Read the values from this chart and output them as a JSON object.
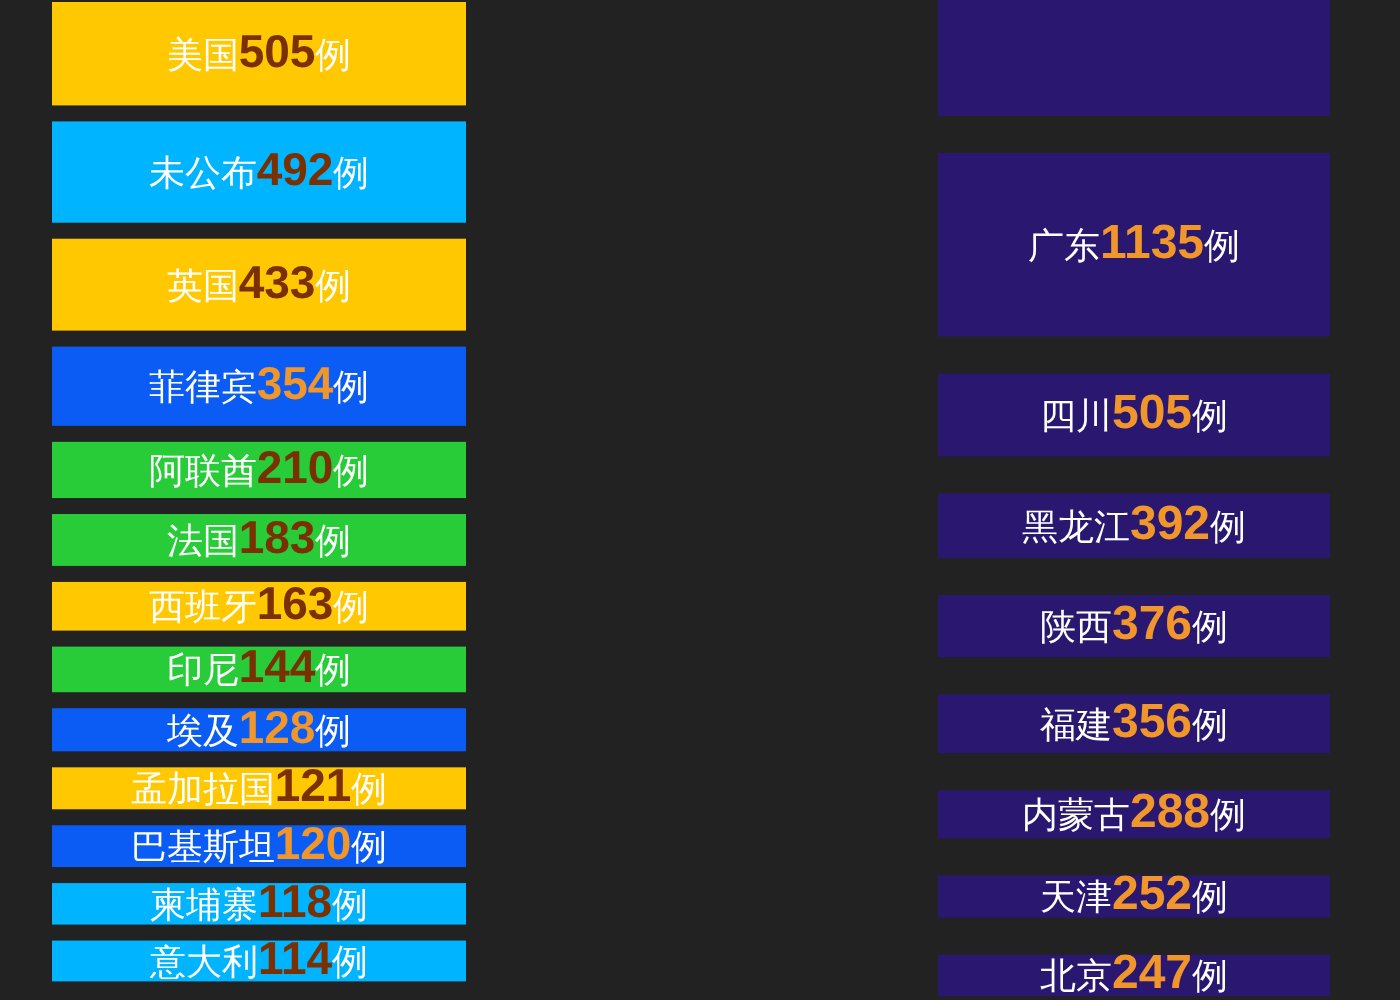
{
  "chart_data": [
    {
      "type": "other",
      "categories": [
        "美国",
        "未公布",
        "英国",
        "菲律宾",
        "阿联酋",
        "法国",
        "西班牙",
        "印尼",
        "埃及",
        "孟加拉国",
        "巴基斯坦",
        "柬埔寨",
        "意大利"
      ],
      "values": [
        505,
        492,
        433,
        354,
        210,
        183,
        163,
        144,
        128,
        121,
        120,
        118,
        114
      ],
      "value_labels": [
        "**505**例",
        "**492**例",
        "**433**例",
        "**354**例",
        "**210**例",
        "**183**例",
        "**163**例",
        "**144**例",
        "**128**例",
        "**121**例",
        "**120**例",
        "**118**例",
        "**114**例"
      ],
      "colors": [
        "#ffc800",
        "#00b4ff",
        "#ffc800",
        "#0a5cf5",
        "#28cc38",
        "#28cc38",
        "#ffc800",
        "#28cc38",
        "#0a5cf5",
        "#ffc800",
        "#0a5cf5",
        "#00b4ff",
        "#00b4ff"
      ]
    },
    {
      "type": "other",
      "categories": [
        null,
        "广东",
        "四川",
        "黑龙江",
        "陕西",
        "福建",
        "内蒙古",
        "天津",
        "北京"
      ],
      "values": [
        null,
        1135,
        505,
        392,
        376,
        356,
        288,
        252,
        247
      ],
      "value_labels": [
        null,
        "**1135**例",
        "**505**例",
        "**392**例",
        "**376**例",
        "**356**例",
        "**288**例",
        "**252**例",
        "**247**例"
      ],
      "color": "#2a1870"
    }
  ]
}
